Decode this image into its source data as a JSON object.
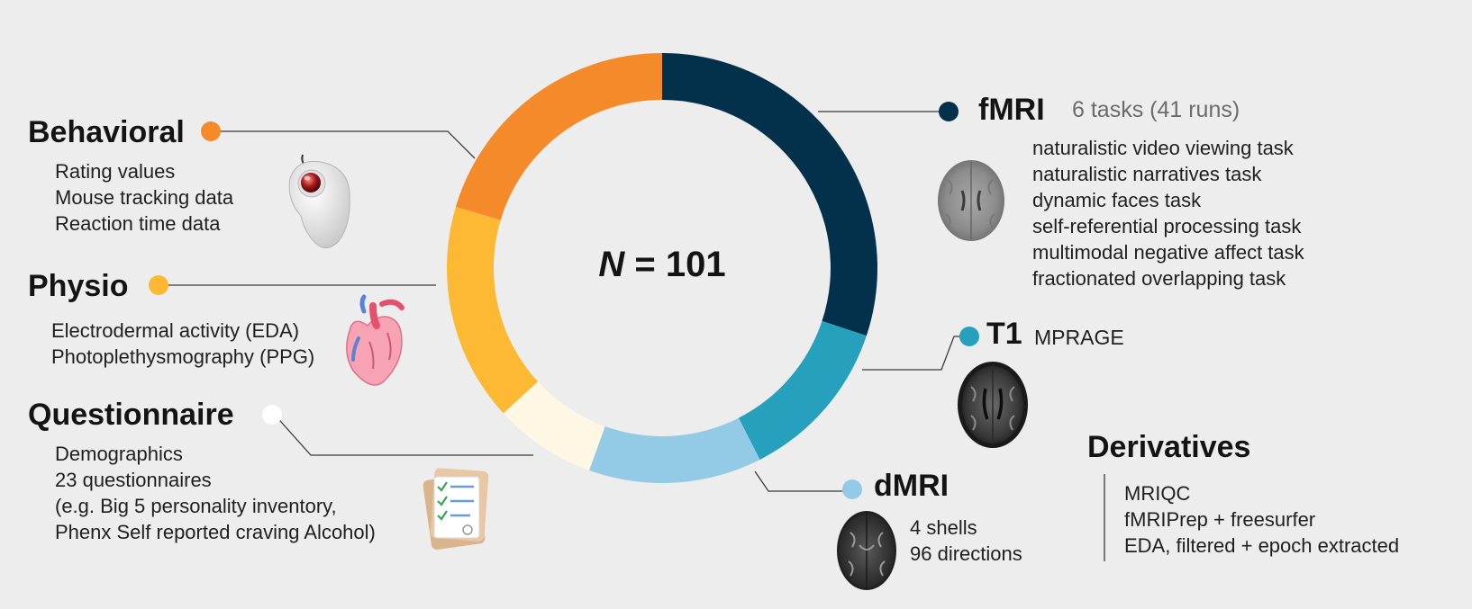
{
  "colors": {
    "background": "#ededed",
    "behavioral": "#f58a2a",
    "physio": "#fdb933",
    "questionnaire": "#fef7e3",
    "dmri": "#93cae6",
    "t1": "#26a0bc",
    "fmri": "#03304a",
    "line": "#3a3a3a"
  },
  "center": {
    "n_symbol": "N",
    "n_text": "= 101"
  },
  "ring_segments": [
    {
      "name": "fmri",
      "fraction": 0.301,
      "color": "#03304a"
    },
    {
      "name": "t1",
      "fraction": 0.124,
      "color": "#26a0bc"
    },
    {
      "name": "dmri",
      "fraction": 0.13,
      "color": "#93cae6"
    },
    {
      "name": "questionnaire",
      "fraction": 0.077,
      "color": "#fef7e3"
    },
    {
      "name": "physio",
      "fraction": 0.164,
      "color": "#fdb933"
    },
    {
      "name": "behavioral",
      "fraction": 0.204,
      "color": "#f58a2a"
    }
  ],
  "behavioral": {
    "title": "Behavioral",
    "items": [
      "Rating values",
      "Mouse tracking data",
      "Reaction time data"
    ],
    "icon": "trackball-mouse-icon"
  },
  "physio": {
    "title": "Physio",
    "items": [
      "Electrodermal activity (EDA)",
      "Photoplethysmography (PPG)"
    ],
    "icon": "heart-icon"
  },
  "questionnaire": {
    "title": "Questionnaire",
    "items": [
      "Demographics",
      "23 questionnaires",
      "(e.g. Big 5 personality inventory,",
      "Phenx Self reported craving Alcohol)"
    ],
    "icon": "clipboard-checklist-icon"
  },
  "fmri": {
    "title": "fMRI",
    "subtitle": "6 tasks (41 runs)",
    "items": [
      "naturalistic video viewing task",
      "naturalistic narratives task",
      "dynamic faces task",
      "self-referential processing task",
      "multimodal negative affect task",
      "fractionated overlapping task"
    ],
    "icon": "brain-fmri-icon"
  },
  "t1": {
    "title": "T1",
    "subtitle": "MPRAGE",
    "icon": "brain-t1-icon"
  },
  "dmri": {
    "title": "dMRI",
    "items": [
      "4 shells",
      "96 directions"
    ],
    "icon": "brain-dmri-icon"
  },
  "derivatives": {
    "title": "Derivatives",
    "items": [
      "MRIQC",
      "fMRIPrep + freesurfer",
      "EDA, filtered + epoch extracted"
    ]
  }
}
